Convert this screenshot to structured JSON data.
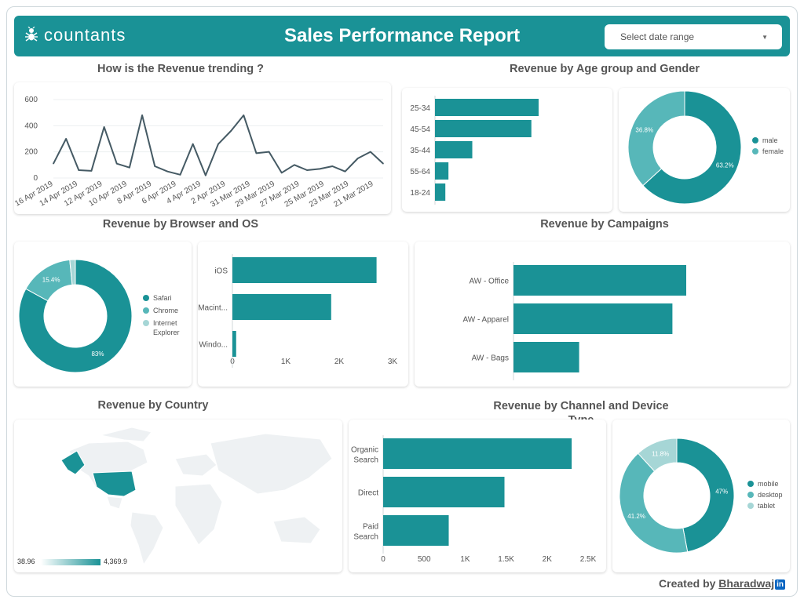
{
  "header": {
    "logo_text": "countants",
    "title": "Sales Performance Report",
    "date_select_placeholder": "Select date range"
  },
  "colors": {
    "primary": "#1a9296",
    "secondary": "#57b7b9",
    "tertiary": "#a6d6d6"
  },
  "sections": {
    "revenue_trend": "How is the Revenue trending ?",
    "age_gender": "Revenue by Age group and Gender",
    "browser_os": "Revenue by Browser and OS",
    "campaigns": "Revenue by Campaigns",
    "country": "Revenue by Country",
    "channel_device": "Revenue by Channel and Device Type"
  },
  "country_legend": {
    "min": "38.96",
    "max": "4,369.9"
  },
  "footer": {
    "created_by": "Created by",
    "author": "Bharadwaj",
    "linkedin": "in"
  },
  "chart_data": [
    {
      "type": "line",
      "ylim": [
        0,
        600
      ],
      "yticks": [
        "0",
        "200",
        "400",
        "600"
      ],
      "xtick_labels": [
        "16 Apr 2019",
        "14 Apr 2019",
        "12 Apr 2019",
        "10 Apr 2019",
        "8 Apr 2019",
        "6 Apr 2019",
        "4 Apr 2019",
        "2 Apr 2019",
        "31 Mar 2019",
        "29 Mar 2019",
        "27 Mar 2019",
        "25 Mar 2019",
        "23 Mar 2019",
        "21 Mar 2019"
      ],
      "series": [
        {
          "values": [
            110,
            300,
            60,
            55,
            390,
            110,
            80,
            480,
            90,
            50,
            25,
            260,
            20,
            260,
            360,
            480,
            190,
            200,
            40,
            100,
            60,
            70,
            90,
            50,
            150,
            200,
            110
          ]
        }
      ]
    },
    {
      "type": "bar",
      "orientation": "horizontal",
      "categories": [
        "25-34",
        "45-54",
        "35-44",
        "55-64",
        "18-24"
      ],
      "values": [
        1000,
        930,
        360,
        130,
        100
      ]
    },
    {
      "type": "pie",
      "labels": [
        "male",
        "female"
      ],
      "values": [
        63.2,
        36.8
      ],
      "slice_labels": [
        "63.2%",
        "36.8%"
      ]
    },
    {
      "type": "pie",
      "labels": [
        "Safari",
        "Chrome",
        "Internet Explorer"
      ],
      "values": [
        83,
        15.4,
        1.6
      ],
      "slice_labels": [
        "83%",
        "15.4%",
        ""
      ]
    },
    {
      "type": "bar",
      "orientation": "horizontal",
      "categories": [
        "iOS",
        "Macint...",
        "Windo..."
      ],
      "values": [
        2700,
        1850,
        70
      ],
      "xlim": [
        0,
        3000
      ],
      "xticks": [
        "0",
        "1K",
        "2K",
        "3K"
      ]
    },
    {
      "type": "bar",
      "orientation": "horizontal",
      "categories": [
        "AW - Office",
        "AW - Apparel",
        "AW - Bags"
      ],
      "values": [
        100,
        92,
        38
      ]
    },
    {
      "type": "bar",
      "orientation": "horizontal",
      "categories": [
        "Organic Search",
        "Direct",
        "Paid Search"
      ],
      "values": [
        2300,
        1480,
        800
      ],
      "xlim": [
        0,
        2500
      ],
      "xticks": [
        "0",
        "500",
        "1K",
        "1.5K",
        "2K",
        "2.5K"
      ]
    },
    {
      "type": "pie",
      "labels": [
        "mobile",
        "desktop",
        "tablet"
      ],
      "values": [
        47,
        41.2,
        11.8
      ],
      "slice_labels": [
        "47%",
        "41.2%",
        "11.8%"
      ]
    }
  ]
}
